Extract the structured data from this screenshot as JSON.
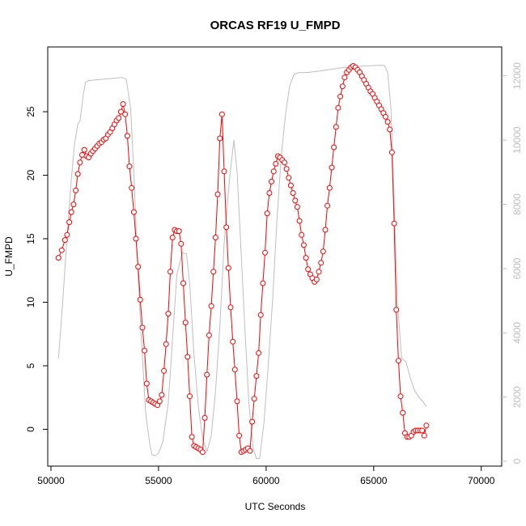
{
  "chart_data": {
    "type": "line",
    "title": "ORCAS RF19 U_FMPD",
    "xlabel": "UTC Seconds",
    "ylabel": "U_FMPD",
    "xlim": [
      49850,
      70950
    ],
    "ylim": [
      -2.9,
      30.1
    ],
    "ylim_right": [
      -150,
      12900
    ],
    "x_ticks": [
      50000,
      55000,
      60000,
      65000,
      70000
    ],
    "y_ticks": [
      0,
      5,
      10,
      15,
      20,
      25
    ],
    "y2_ticks": [
      0,
      2000,
      4000,
      6000,
      8000,
      10000,
      12000
    ],
    "grid": false,
    "colors": {
      "primary": "#ff0000",
      "secondary": "#bebebe",
      "axis": "#000000"
    },
    "series": [
      {
        "axis": "left",
        "marker": "open-circle",
        "points": [
          [
            50350,
            13.5
          ],
          [
            50500,
            14.1
          ],
          [
            50650,
            14.9
          ],
          [
            50750,
            15.3
          ],
          [
            50850,
            16.3
          ],
          [
            50950,
            17.1
          ],
          [
            51050,
            17.7
          ],
          [
            51150,
            18.8
          ],
          [
            51250,
            20.1
          ],
          [
            51350,
            21.0
          ],
          [
            51450,
            21.6
          ],
          [
            51550,
            22.0
          ],
          [
            51650,
            21.5
          ],
          [
            51750,
            21.4
          ],
          [
            51850,
            21.7
          ],
          [
            51950,
            21.9
          ],
          [
            52050,
            22.1
          ],
          [
            52150,
            22.3
          ],
          [
            52250,
            22.5
          ],
          [
            52350,
            22.6
          ],
          [
            52450,
            22.8
          ],
          [
            52550,
            22.9
          ],
          [
            52650,
            23.2
          ],
          [
            52750,
            23.4
          ],
          [
            52850,
            23.7
          ],
          [
            52950,
            24.0
          ],
          [
            53050,
            24.3
          ],
          [
            53150,
            24.5
          ],
          [
            53250,
            25.0
          ],
          [
            53350,
            25.6
          ],
          [
            53450,
            24.8
          ],
          [
            53550,
            23.1
          ],
          [
            53650,
            20.7
          ],
          [
            53750,
            19.0
          ],
          [
            53850,
            17.1
          ],
          [
            53950,
            15.0
          ],
          [
            54050,
            12.8
          ],
          [
            54150,
            10.2
          ],
          [
            54250,
            8.0
          ],
          [
            54350,
            6.2
          ],
          [
            54450,
            3.6
          ],
          [
            54550,
            2.3
          ],
          [
            54650,
            2.2
          ],
          [
            54750,
            2.1
          ],
          [
            54850,
            2.0
          ],
          [
            54950,
            1.9
          ],
          [
            55050,
            2.2
          ],
          [
            55150,
            2.7
          ],
          [
            55250,
            4.6
          ],
          [
            55350,
            6.7
          ],
          [
            55450,
            9.1
          ],
          [
            55550,
            12.4
          ],
          [
            55650,
            15.1
          ],
          [
            55750,
            15.7
          ],
          [
            55850,
            15.6
          ],
          [
            55950,
            15.6
          ],
          [
            56050,
            14.6
          ],
          [
            56150,
            11.5
          ],
          [
            56250,
            8.4
          ],
          [
            56350,
            5.7
          ],
          [
            56450,
            2.6
          ],
          [
            56550,
            -0.6
          ],
          [
            56650,
            -1.3
          ],
          [
            56750,
            -1.4
          ],
          [
            56850,
            -1.5
          ],
          [
            56950,
            -1.6
          ],
          [
            57050,
            -1.8
          ],
          [
            57150,
            0.9
          ],
          [
            57250,
            4.3
          ],
          [
            57350,
            7.4
          ],
          [
            57450,
            9.7
          ],
          [
            57550,
            12.4
          ],
          [
            57650,
            15.1
          ],
          [
            57750,
            18.5
          ],
          [
            57850,
            22.9
          ],
          [
            57950,
            24.8
          ],
          [
            58050,
            20.3
          ],
          [
            58150,
            15.9
          ],
          [
            58250,
            12.7
          ],
          [
            58350,
            9.6
          ],
          [
            58450,
            6.9
          ],
          [
            58550,
            4.7
          ],
          [
            58650,
            2.2
          ],
          [
            58750,
            -0.5
          ],
          [
            58850,
            -1.8
          ],
          [
            58950,
            -1.7
          ],
          [
            59050,
            -1.6
          ],
          [
            59150,
            -1.5
          ],
          [
            59250,
            -1.7
          ],
          [
            59350,
            0.6
          ],
          [
            59450,
            2.4
          ],
          [
            59550,
            4.2
          ],
          [
            59650,
            6.0
          ],
          [
            59750,
            9.0
          ],
          [
            59850,
            11.5
          ],
          [
            59950,
            13.9
          ],
          [
            60050,
            17.0
          ],
          [
            60150,
            18.6
          ],
          [
            60250,
            19.5
          ],
          [
            60350,
            20.3
          ],
          [
            60450,
            20.9
          ],
          [
            60550,
            21.5
          ],
          [
            60650,
            21.4
          ],
          [
            60750,
            21.2
          ],
          [
            60850,
            21.0
          ],
          [
            60950,
            20.5
          ],
          [
            61050,
            19.8
          ],
          [
            61150,
            19.2
          ],
          [
            61250,
            18.6
          ],
          [
            61350,
            18.0
          ],
          [
            61450,
            17.5
          ],
          [
            61550,
            16.4
          ],
          [
            61650,
            15.3
          ],
          [
            61750,
            14.5
          ],
          [
            61850,
            13.5
          ],
          [
            61950,
            12.6
          ],
          [
            62050,
            12.2
          ],
          [
            62150,
            11.9
          ],
          [
            62250,
            11.6
          ],
          [
            62350,
            11.8
          ],
          [
            62450,
            12.4
          ],
          [
            62550,
            13.1
          ],
          [
            62650,
            14.0
          ],
          [
            62750,
            15.7
          ],
          [
            62850,
            17.6
          ],
          [
            62950,
            19.0
          ],
          [
            63050,
            20.6
          ],
          [
            63150,
            22.2
          ],
          [
            63250,
            23.8
          ],
          [
            63350,
            25.3
          ],
          [
            63450,
            26.2
          ],
          [
            63550,
            27.0
          ],
          [
            63650,
            27.7
          ],
          [
            63750,
            28.1
          ],
          [
            63850,
            28.3
          ],
          [
            63950,
            28.5
          ],
          [
            64050,
            28.6
          ],
          [
            64150,
            28.5
          ],
          [
            64250,
            28.3
          ],
          [
            64350,
            28.1
          ],
          [
            64450,
            27.8
          ],
          [
            64550,
            27.5
          ],
          [
            64650,
            27.2
          ],
          [
            64750,
            26.9
          ],
          [
            64850,
            26.6
          ],
          [
            64950,
            26.4
          ],
          [
            65050,
            26.1
          ],
          [
            65150,
            25.8
          ],
          [
            65250,
            25.5
          ],
          [
            65350,
            25.2
          ],
          [
            65450,
            24.9
          ],
          [
            65550,
            24.6
          ],
          [
            65650,
            24.2
          ],
          [
            65750,
            23.6
          ],
          [
            65850,
            21.8
          ],
          [
            65950,
            16.2
          ],
          [
            66050,
            9.4
          ],
          [
            66150,
            5.4
          ],
          [
            66250,
            2.6
          ],
          [
            66350,
            1.3
          ],
          [
            66450,
            -0.3
          ],
          [
            66550,
            -0.6
          ],
          [
            66650,
            -0.6
          ],
          [
            66750,
            -0.5
          ],
          [
            66850,
            -0.2
          ],
          [
            66950,
            -0.1
          ],
          [
            67050,
            -0.1
          ],
          [
            67150,
            -0.1
          ],
          [
            67250,
            -0.1
          ],
          [
            67350,
            -0.5
          ],
          [
            67450,
            0.3
          ]
        ]
      },
      {
        "axis": "right",
        "marker": "none",
        "points": [
          [
            50350,
            3200
          ],
          [
            50550,
            5000
          ],
          [
            50750,
            7000
          ],
          [
            50950,
            8800
          ],
          [
            51100,
            9900
          ],
          [
            51250,
            10500
          ],
          [
            51350,
            10600
          ],
          [
            51500,
            11400
          ],
          [
            51600,
            11800
          ],
          [
            51750,
            11850
          ],
          [
            52000,
            11870
          ],
          [
            52500,
            11900
          ],
          [
            53000,
            11930
          ],
          [
            53300,
            11950
          ],
          [
            53500,
            11900
          ],
          [
            53700,
            11000
          ],
          [
            53850,
            9000
          ],
          [
            54000,
            6500
          ],
          [
            54200,
            3800
          ],
          [
            54400,
            1500
          ],
          [
            54600,
            500
          ],
          [
            54700,
            200
          ],
          [
            54850,
            180
          ],
          [
            55000,
            250
          ],
          [
            55200,
            600
          ],
          [
            55450,
            1800
          ],
          [
            55650,
            3800
          ],
          [
            55850,
            5800
          ],
          [
            56100,
            6500
          ],
          [
            56300,
            6450
          ],
          [
            56450,
            5500
          ],
          [
            56650,
            3300
          ],
          [
            56850,
            1700
          ],
          [
            57050,
            700
          ],
          [
            57250,
            300
          ],
          [
            57450,
            800
          ],
          [
            57650,
            2200
          ],
          [
            57850,
            4200
          ],
          [
            58050,
            6800
          ],
          [
            58300,
            8800
          ],
          [
            58500,
            10000
          ],
          [
            58650,
            9000
          ],
          [
            58800,
            7000
          ],
          [
            59000,
            4300
          ],
          [
            59200,
            1800
          ],
          [
            59400,
            400
          ],
          [
            59550,
            80
          ],
          [
            59700,
            100
          ],
          [
            59900,
            1200
          ],
          [
            60100,
            3000
          ],
          [
            60300,
            5000
          ],
          [
            60500,
            7500
          ],
          [
            60700,
            9500
          ],
          [
            60900,
            10800
          ],
          [
            61100,
            11700
          ],
          [
            61300,
            12050
          ],
          [
            61500,
            12100
          ],
          [
            61700,
            12100
          ],
          [
            62000,
            12110
          ],
          [
            62500,
            12150
          ],
          [
            63000,
            12200
          ],
          [
            63500,
            12250
          ],
          [
            64000,
            12280
          ],
          [
            64500,
            12300
          ],
          [
            65000,
            12320
          ],
          [
            65300,
            12330
          ],
          [
            65500,
            12320
          ],
          [
            65650,
            12100
          ],
          [
            65800,
            11000
          ],
          [
            65950,
            8000
          ],
          [
            66100,
            5000
          ],
          [
            66300,
            3200
          ],
          [
            66500,
            3100
          ],
          [
            66700,
            2600
          ],
          [
            66900,
            2200
          ],
          [
            67100,
            2000
          ],
          [
            67300,
            1850
          ],
          [
            67450,
            1700
          ]
        ]
      }
    ]
  }
}
